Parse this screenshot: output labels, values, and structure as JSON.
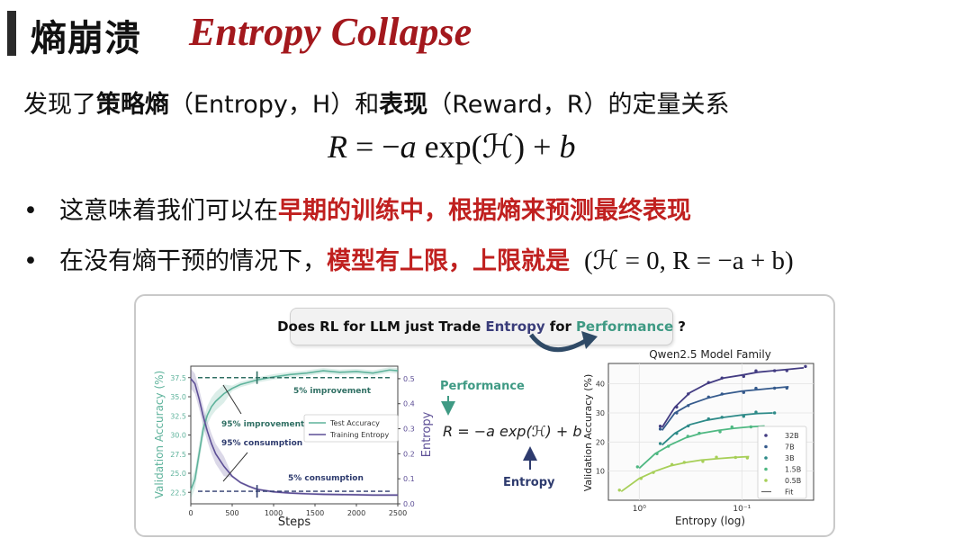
{
  "title": {
    "cn": "熵崩溃",
    "en": "Entropy Collapse"
  },
  "line1": {
    "p1": "发现了",
    "p2": "策略熵",
    "p3": "（Entropy，H）和",
    "p4": "表现",
    "p5": "（Reward，R）的定量关系"
  },
  "formula": {
    "R": "R",
    "eq": " = −",
    "a": "a",
    "exp": " exp(",
    "H": "ℋ",
    "close": ") + ",
    "b": "b"
  },
  "bullets": [
    {
      "dot": "•",
      "pre": "这意味着我们可以在",
      "hl": "早期的训练中，根据熵来预测最终表现"
    },
    {
      "dot": "•",
      "pre": "在没有熵干预的情况下，",
      "hl": "模型有上限，上限就是",
      "math": "(ℋ = 0, R = −a + b)"
    }
  ],
  "figure": {
    "question": {
      "q1": "Does RL for LLM just Trade",
      "q2": "Entropy",
      "q3": "for",
      "q4": "Performance",
      "q5": "?"
    },
    "center": {
      "performance": "Performance",
      "entropy": "Entropy",
      "formula": "R = −a exp(ℋ) + b"
    },
    "colors": {
      "accuracy": "#5fb39c",
      "entropy": "#5d4f96",
      "dashed": "#2f6f63",
      "dashed2": "#2e3b6e"
    },
    "left_annotations": {
      "imp5": "5% improvement",
      "imp95": "95% improvement",
      "cons95": "95% consumption",
      "cons5": "5% consumption"
    }
  },
  "chart_data": [
    {
      "type": "line",
      "title": "",
      "xlabel": "Steps",
      "ylabel": "Validation Accuracy (%)",
      "y2label": "Entropy",
      "xlim": [
        0,
        2500
      ],
      "ylim": [
        21,
        39
      ],
      "y2lim": [
        0,
        0.55
      ],
      "xticks": [
        "0",
        "500",
        "1000",
        "1500",
        "2000",
        "2500"
      ],
      "yticks": [
        "22.5",
        "25.0",
        "27.5",
        "30.0",
        "32.5",
        "35.0",
        "37.5"
      ],
      "y2ticks": [
        "0.0",
        "0.1",
        "0.2",
        "0.3",
        "0.4",
        "0.5"
      ],
      "legend": [
        "Test Accuracy",
        "Training Entropy"
      ],
      "legend_position": "center-right",
      "series": [
        {
          "name": "Test Accuracy",
          "axis": "left",
          "x": [
            0,
            50,
            100,
            150,
            200,
            250,
            300,
            400,
            500,
            600,
            700,
            800,
            1000,
            1200,
            1400,
            1600,
            1800,
            2000,
            2200,
            2400,
            2500
          ],
          "values": [
            22.8,
            24.2,
            27.5,
            30.8,
            32.6,
            33.7,
            34.4,
            35.4,
            36.1,
            36.6,
            36.9,
            37.2,
            37.6,
            37.9,
            38.1,
            38.4,
            38.2,
            38.3,
            38.1,
            38.5,
            38.4
          ]
        },
        {
          "name": "Training Entropy",
          "axis": "right",
          "x": [
            0,
            50,
            100,
            150,
            200,
            250,
            300,
            400,
            500,
            600,
            700,
            800,
            1000,
            1200,
            1400,
            1600,
            1800,
            2000,
            2200,
            2400,
            2500
          ],
          "values": [
            0.5,
            0.48,
            0.42,
            0.35,
            0.29,
            0.24,
            0.2,
            0.15,
            0.11,
            0.085,
            0.07,
            0.058,
            0.048,
            0.043,
            0.04,
            0.038,
            0.037,
            0.036,
            0.035,
            0.035,
            0.035
          ]
        }
      ]
    },
    {
      "type": "scatter",
      "title": "Qwen2.5 Model Family",
      "xlabel": "Entropy (log)",
      "ylabel": "Validation Accuracy (%)",
      "xscale": "log",
      "xticks": [
        "10⁰",
        "10⁻¹"
      ],
      "yticks": [
        "10",
        "20",
        "30",
        "40"
      ],
      "ylim": [
        0,
        47
      ],
      "legend": [
        "32B",
        "7B",
        "3B",
        "1.5B",
        "0.5B",
        "Fit"
      ],
      "legend_position": "lower-right",
      "series": [
        {
          "name": "32B",
          "color": "#433c82",
          "entropy": [
            0.6,
            0.45,
            0.32,
            0.22,
            0.15,
            0.1,
            0.07,
            0.05,
            0.035,
            0.025
          ],
          "values": [
            25,
            32,
            37,
            40,
            42,
            43,
            44,
            44.5,
            45,
            45.5
          ]
        },
        {
          "name": "7B",
          "color": "#355a8c",
          "entropy": [
            0.6,
            0.45,
            0.32,
            0.22,
            0.15,
            0.1,
            0.07,
            0.05,
            0.035
          ],
          "values": [
            24,
            30,
            33,
            35,
            36.5,
            37.5,
            38,
            38.5,
            39
          ]
        },
        {
          "name": "3B",
          "color": "#2d8a88",
          "entropy": [
            0.6,
            0.45,
            0.32,
            0.22,
            0.15,
            0.1,
            0.07,
            0.05
          ],
          "values": [
            19,
            23,
            26,
            27.5,
            28.5,
            29.3,
            29.8,
            30
          ]
        },
        {
          "name": "1.5B",
          "color": "#4fb882",
          "entropy": [
            1.0,
            0.7,
            0.5,
            0.35,
            0.25,
            0.17,
            0.12,
            0.085,
            0.06
          ],
          "values": [
            11,
            16,
            19,
            21.5,
            23,
            24,
            24.7,
            25.2,
            25.5
          ]
        },
        {
          "name": "0.5B",
          "color": "#a7cf58",
          "entropy": [
            1.5,
            1.0,
            0.7,
            0.5,
            0.35,
            0.25,
            0.17,
            0.12,
            0.085
          ],
          "values": [
            3,
            7.5,
            10,
            11.8,
            13,
            13.8,
            14.3,
            14.7,
            15
          ]
        }
      ]
    }
  ]
}
